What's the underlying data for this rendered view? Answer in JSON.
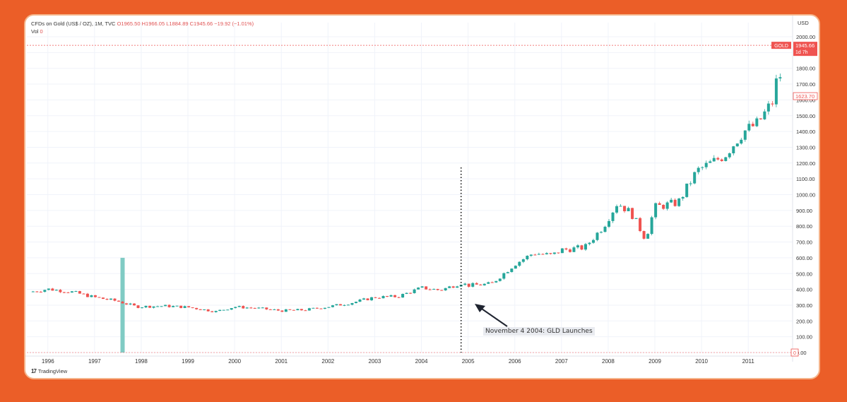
{
  "legend": {
    "title": "CFDs on Gold (US$ / OZ), 1M, TVC",
    "open": "O1965.50",
    "high": "H1966.05",
    "low": "L1884.89",
    "close": "C1945.66",
    "change": "−19.92 (−1.01%)",
    "vol_label": "Vol",
    "vol_value": "0"
  },
  "currency": "USD",
  "branding": "TradingView",
  "annotation": "November 4 2004: GLD Launches",
  "colors": {
    "up": "#26a69a",
    "down": "#ef5350",
    "volume": "#80cbc4",
    "background": "#EB5E28"
  },
  "chart_data": {
    "type": "candlestick",
    "title": "CFDs on Gold (US$ / OZ), 1M, TVC",
    "x_ticks": [
      "1996",
      "1997",
      "1998",
      "1999",
      "2000",
      "2001",
      "2002",
      "2003",
      "2004",
      "2005",
      "2006",
      "2007",
      "2008",
      "2009",
      "2010",
      "2011"
    ],
    "xlim": [
      1995.55,
      2011.95
    ],
    "ylim": [
      0,
      2000
    ],
    "y_ticks": [
      "2000.00",
      "1900.00",
      "1800.00",
      "1700.00",
      "1600.00",
      "1500.00",
      "1400.00",
      "1300.00",
      "1200.00",
      "1100.00",
      "1000.00",
      "900.00",
      "800.00",
      "700.00",
      "600.00",
      "500.00",
      "400.00",
      "300.00",
      "200.00",
      "100.00",
      "0.00"
    ],
    "closes": [
      {
        "x": 1995.6,
        "y": 383
      },
      {
        "x": 1996.0,
        "y": 402
      },
      {
        "x": 1996.5,
        "y": 385
      },
      {
        "x": 1997.0,
        "y": 350
      },
      {
        "x": 1997.5,
        "y": 325
      },
      {
        "x": 1997.9,
        "y": 290
      },
      {
        "x": 1998.5,
        "y": 295
      },
      {
        "x": 1999.0,
        "y": 287
      },
      {
        "x": 1999.6,
        "y": 260
      },
      {
        "x": 2000.0,
        "y": 290
      },
      {
        "x": 2000.5,
        "y": 280
      },
      {
        "x": 2001.0,
        "y": 265
      },
      {
        "x": 2001.5,
        "y": 270
      },
      {
        "x": 2002.0,
        "y": 290
      },
      {
        "x": 2002.5,
        "y": 315
      },
      {
        "x": 2003.0,
        "y": 350
      },
      {
        "x": 2003.5,
        "y": 355
      },
      {
        "x": 2004.0,
        "y": 410
      },
      {
        "x": 2004.4,
        "y": 395
      },
      {
        "x": 2004.85,
        "y": 440
      },
      {
        "x": 2005.0,
        "y": 425
      },
      {
        "x": 2005.5,
        "y": 435
      },
      {
        "x": 2006.0,
        "y": 560
      },
      {
        "x": 2006.4,
        "y": 630
      },
      {
        "x": 2006.8,
        "y": 615
      },
      {
        "x": 2007.0,
        "y": 650
      },
      {
        "x": 2007.5,
        "y": 665
      },
      {
        "x": 2007.9,
        "y": 800
      },
      {
        "x": 2008.2,
        "y": 950
      },
      {
        "x": 2008.5,
        "y": 880
      },
      {
        "x": 2008.8,
        "y": 720
      },
      {
        "x": 2009.0,
        "y": 920
      },
      {
        "x": 2009.5,
        "y": 950
      },
      {
        "x": 2009.9,
        "y": 1150
      },
      {
        "x": 2010.5,
        "y": 1250
      },
      {
        "x": 2010.9,
        "y": 1400
      },
      {
        "x": 2011.2,
        "y": 1450
      },
      {
        "x": 2011.55,
        "y": 1600
      },
      {
        "x": 2011.65,
        "y": 1820
      },
      {
        "x": 2011.75,
        "y": 1623.7
      }
    ],
    "volume_bar": {
      "x": 1997.6,
      "value": 600
    },
    "markers": [
      {
        "label": "GOLD",
        "value": "1945.66",
        "sub": "1d 7h"
      },
      {
        "label": "",
        "value": "1623.70",
        "sub": ""
      },
      {
        "label": "",
        "value": "0",
        "sub": ""
      }
    ],
    "event": {
      "x": 2004.85,
      "label": "November 4 2004: GLD Launches"
    },
    "grid": true
  }
}
